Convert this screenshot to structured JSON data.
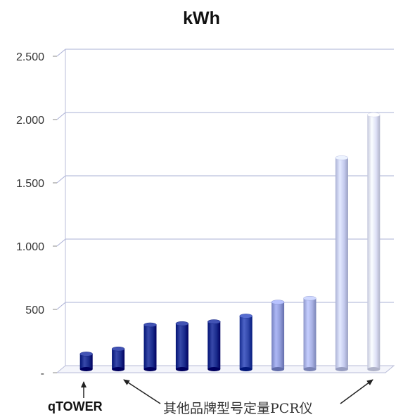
{
  "chart_data": {
    "type": "bar",
    "title": "kWh",
    "categories": [
      "",
      "",
      "",
      "",
      "",
      "",
      "",
      "",
      "",
      ""
    ],
    "values": [
      120,
      160,
      350,
      360,
      375,
      420,
      530,
      560,
      1670,
      2010
    ],
    "bar_colors": [
      "#1a2b8c",
      "#1a2b8c",
      "#1a2b8c",
      "#1a2b8c",
      "#1a2b8c",
      "#2f45a8",
      "#8f9ad8",
      "#a7b0e2",
      "#c5cbee",
      "#dde0f6"
    ],
    "ylim": [
      0,
      2500
    ],
    "yticks": [
      {
        "value": 500,
        "label": "500"
      },
      {
        "value": 1000,
        "label": "1.000"
      },
      {
        "value": 1500,
        "label": "1.500"
      },
      {
        "value": 2000,
        "label": "2.000"
      },
      {
        "value": 2500,
        "label": "2.500"
      }
    ],
    "grid": true,
    "xlabel": "",
    "ylabel": ""
  },
  "annotations": {
    "qtower_label": "qTOWER",
    "others_label": "其他品牌型号定量PCR仪"
  }
}
